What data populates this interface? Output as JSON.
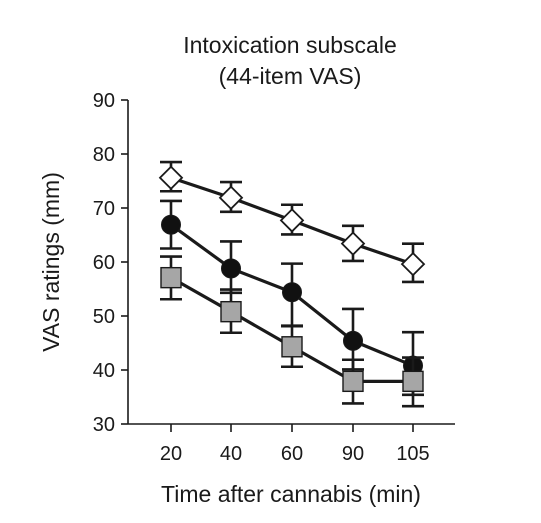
{
  "chart_data": {
    "type": "line",
    "title": "Intoxication subscale",
    "subtitle": "(44-item VAS)",
    "xlabel": "Time after cannabis (min)",
    "ylabel": "VAS ratings (mm)",
    "categories": [
      "20",
      "40",
      "60",
      "90",
      "105"
    ],
    "ylim": [
      30,
      90
    ],
    "yticks": [
      "30",
      "40",
      "50",
      "60",
      "70",
      "80",
      "90"
    ],
    "grid": false,
    "series": [
      {
        "marker": "diamond-open",
        "color": "#ffffff",
        "values": [
          75.6,
          71.9,
          67.7,
          63.4,
          59.6
        ],
        "err_low": [
          73.1,
          69.3,
          65.1,
          60.2,
          56.3
        ],
        "err_high": [
          78.5,
          74.8,
          70.6,
          66.7,
          63.4
        ]
      },
      {
        "marker": "circle-filled",
        "color": "#111111",
        "values": [
          66.9,
          58.8,
          54.4,
          45.4,
          40.8
        ],
        "err_low": [
          62.5,
          54.3,
          48.1,
          40.1,
          35.4
        ],
        "err_high": [
          71.3,
          63.8,
          59.7,
          51.3,
          47.0
        ]
      },
      {
        "marker": "square-gray",
        "color": "#a6a6a6",
        "values": [
          57.1,
          50.8,
          44.3,
          37.9,
          37.9
        ],
        "err_low": [
          53.1,
          46.9,
          40.6,
          33.8,
          33.3
        ],
        "err_high": [
          61.0,
          54.9,
          48.2,
          41.9,
          42.3
        ]
      }
    ]
  }
}
